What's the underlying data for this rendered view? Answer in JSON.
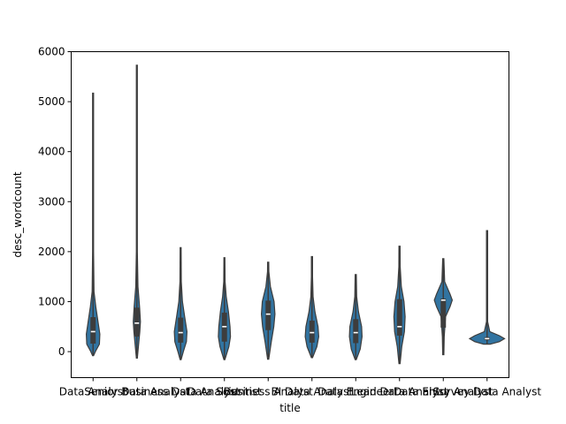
{
  "chart_data": {
    "type": "violin",
    "xlabel": "title",
    "ylabel": "desc_wordcount",
    "ylim": [
      -520,
      6000
    ],
    "yticks": [
      0,
      1000,
      2000,
      3000,
      4000,
      5000,
      6000
    ],
    "grid": false,
    "color": "#3274a1",
    "categories": [
      "Data Analyst",
      "Senior Data Analyst",
      "Business Data Analyst",
      "Data Scientist",
      "Business Analyst",
      "BI Data Analyst",
      "Data Engineer",
      "Lead Data Analyst",
      "Data Entry Analyst",
      "Survey Data Analyst"
    ],
    "series": [
      {
        "min": -80,
        "q1": 160,
        "median": 400,
        "q3": 690,
        "max": 5170,
        "profile": [
          [
            -80,
            0.01
          ],
          [
            0,
            0.1
          ],
          [
            150,
            0.28
          ],
          [
            350,
            0.3
          ],
          [
            600,
            0.22
          ],
          [
            900,
            0.12
          ],
          [
            1200,
            0.04
          ],
          [
            2000,
            0.015
          ],
          [
            3500,
            0.008
          ],
          [
            5170,
            0.0
          ]
        ]
      },
      {
        "min": -130,
        "q1": 300,
        "median": 570,
        "q3": 880,
        "max": 5730,
        "profile": [
          [
            -130,
            0.01
          ],
          [
            100,
            0.07
          ],
          [
            400,
            0.13
          ],
          [
            600,
            0.16
          ],
          [
            900,
            0.12
          ],
          [
            1300,
            0.05
          ],
          [
            2000,
            0.015
          ],
          [
            4000,
            0.006
          ],
          [
            5730,
            0.0
          ]
        ]
      },
      {
        "min": -160,
        "q1": 180,
        "median": 380,
        "q3": 680,
        "max": 2080,
        "profile": [
          [
            -160,
            0.01
          ],
          [
            0,
            0.12
          ],
          [
            200,
            0.26
          ],
          [
            400,
            0.28
          ],
          [
            700,
            0.18
          ],
          [
            1000,
            0.08
          ],
          [
            1400,
            0.03
          ],
          [
            2080,
            0.0
          ]
        ]
      },
      {
        "min": -160,
        "q1": 200,
        "median": 500,
        "q3": 780,
        "max": 1880,
        "profile": [
          [
            -160,
            0.01
          ],
          [
            100,
            0.2
          ],
          [
            300,
            0.27
          ],
          [
            500,
            0.25
          ],
          [
            800,
            0.18
          ],
          [
            1100,
            0.08
          ],
          [
            1400,
            0.03
          ],
          [
            1880,
            0.0
          ]
        ]
      },
      {
        "min": -150,
        "q1": 430,
        "median": 750,
        "q3": 1020,
        "max": 1790,
        "profile": [
          [
            -150,
            0.01
          ],
          [
            200,
            0.14
          ],
          [
            500,
            0.25
          ],
          [
            750,
            0.3
          ],
          [
            1000,
            0.26
          ],
          [
            1300,
            0.1
          ],
          [
            1600,
            0.03
          ],
          [
            1790,
            0.0
          ]
        ]
      },
      {
        "min": -120,
        "q1": 180,
        "median": 380,
        "q3": 620,
        "max": 1900,
        "profile": [
          [
            -120,
            0.01
          ],
          [
            100,
            0.22
          ],
          [
            300,
            0.3
          ],
          [
            500,
            0.27
          ],
          [
            800,
            0.13
          ],
          [
            1100,
            0.05
          ],
          [
            1500,
            0.015
          ],
          [
            1900,
            0.0
          ]
        ]
      },
      {
        "min": -160,
        "q1": 170,
        "median": 380,
        "q3": 650,
        "max": 1540,
        "profile": [
          [
            -160,
            0.01
          ],
          [
            50,
            0.2
          ],
          [
            300,
            0.28
          ],
          [
            500,
            0.26
          ],
          [
            800,
            0.12
          ],
          [
            1100,
            0.04
          ],
          [
            1540,
            0.0
          ]
        ]
      },
      {
        "min": -240,
        "q1": 320,
        "median": 500,
        "q3": 1050,
        "max": 2110,
        "profile": [
          [
            -240,
            0.01
          ],
          [
            100,
            0.1
          ],
          [
            400,
            0.22
          ],
          [
            700,
            0.25
          ],
          [
            1000,
            0.2
          ],
          [
            1300,
            0.08
          ],
          [
            1700,
            0.03
          ],
          [
            2110,
            0.0
          ]
        ]
      },
      {
        "min": -60,
        "q1": 480,
        "median": 1030,
        "q3": 1060,
        "max": 1860,
        "profile": [
          [
            -60,
            0.01
          ],
          [
            300,
            0.04
          ],
          [
            700,
            0.1
          ],
          [
            900,
            0.3
          ],
          [
            1030,
            0.4
          ],
          [
            1150,
            0.3
          ],
          [
            1400,
            0.06
          ],
          [
            1860,
            0.0
          ]
        ]
      },
      {
        "min": 150,
        "q1": 230,
        "median": 260,
        "q3": 290,
        "max": 2420,
        "profile": [
          [
            150,
            0.15
          ],
          [
            200,
            0.55
          ],
          [
            260,
            0.78
          ],
          [
            320,
            0.55
          ],
          [
            400,
            0.12
          ],
          [
            600,
            0.01
          ],
          [
            2420,
            0.0
          ]
        ]
      }
    ]
  }
}
